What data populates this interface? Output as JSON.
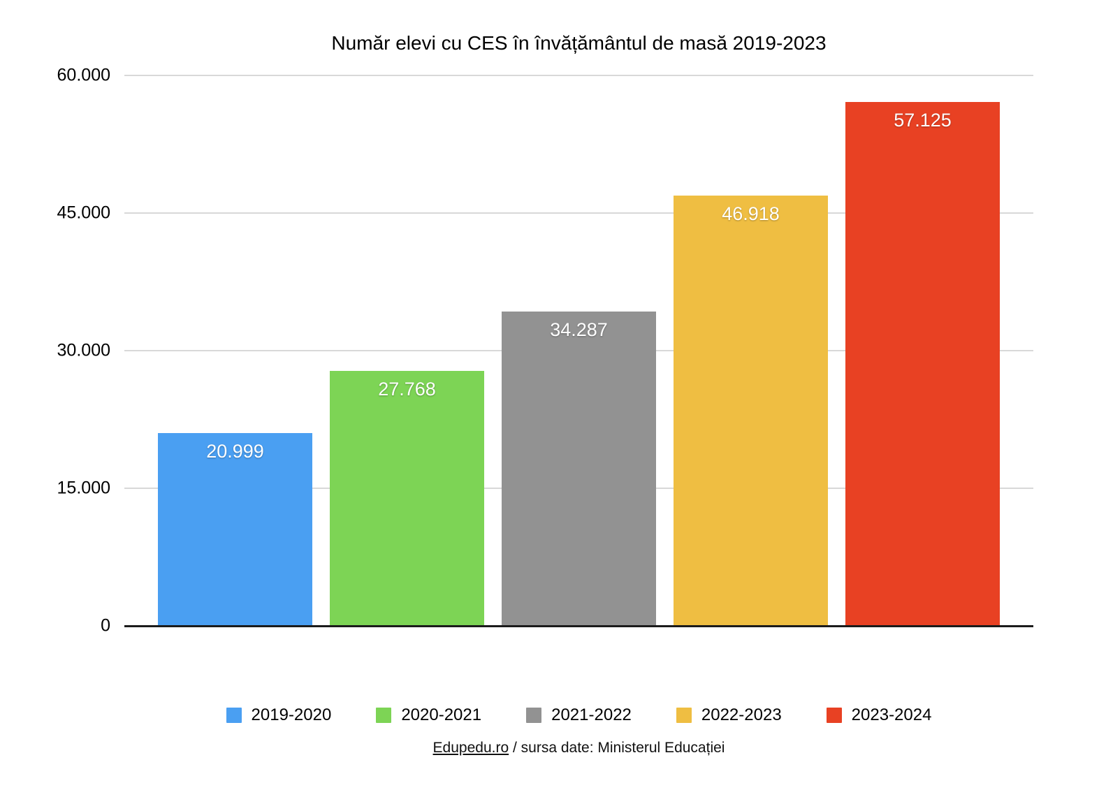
{
  "chart_data": {
    "type": "bar",
    "title": "Număr elevi cu CES în învățământul de masă 2019-2023",
    "categories": [
      "2019-2020",
      "2020-2021",
      "2021-2022",
      "2022-2023",
      "2023-2024"
    ],
    "values": [
      20999,
      27768,
      34287,
      46918,
      57125
    ],
    "value_labels": [
      "20.999",
      "27.768",
      "34.287",
      "46.918",
      "57.125"
    ],
    "colors": [
      "#4A9FF2",
      "#7DD455",
      "#929292",
      "#EFBE42",
      "#E84123"
    ],
    "xlabel": "",
    "ylabel": "",
    "ylim": [
      0,
      60000
    ],
    "yticks": [
      {
        "value": 0,
        "label": "0"
      },
      {
        "value": 15000,
        "label": "15.000"
      },
      {
        "value": 30000,
        "label": "30.000"
      },
      {
        "value": 45000,
        "label": "45.000"
      },
      {
        "value": 60000,
        "label": "60.000"
      }
    ],
    "grid": true,
    "legend_position": "bottom"
  },
  "footer": {
    "link_text": "Edupedu.ro",
    "rest_text": " / sursa date: Ministerul Educației"
  }
}
